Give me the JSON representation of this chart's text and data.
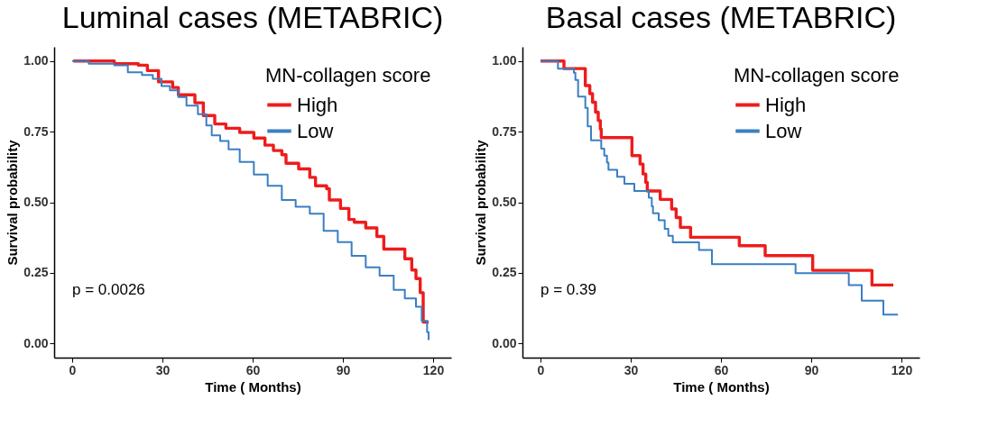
{
  "chart_data": [
    {
      "type": "step",
      "title": "Luminal cases (METABRIC)",
      "xlabel": "Time ( Months)",
      "ylabel": "Survival probability",
      "legend_title": "MN-collagen score",
      "legend": "top right",
      "annotations": [
        "p = 0.0026"
      ],
      "xlim": [
        -6,
        126
      ],
      "xticks": [
        0,
        30,
        60,
        90,
        120
      ],
      "ylim": [
        -0.05,
        1.05
      ],
      "yticks": [
        {
          "value": 0,
          "label": "0.00"
        },
        {
          "value": 0.25,
          "label": "0.25"
        },
        {
          "value": 0.5,
          "label": "0.50"
        },
        {
          "value": 0.75,
          "label": "0.75"
        },
        {
          "value": 1,
          "label": "1.00"
        }
      ],
      "series": [
        {
          "name": "High",
          "color": "#ee1c1c",
          "x": [
            0.4,
            14,
            22,
            25,
            28.7,
            33.4,
            35.3,
            40.8,
            43.6,
            47.4,
            51.1,
            55.7,
            60.4,
            64.1,
            66.9,
            69.7,
            71.1,
            75.3,
            79,
            80.9,
            84.6,
            85.5,
            89.2,
            92,
            93.8,
            97.6,
            101.3,
            103.6,
            109.2,
            110.6,
            112.9,
            114.3,
            115.7,
            116.7,
            118.5
          ],
          "values": [
            1.0,
            0.99,
            0.985,
            0.966,
            0.926,
            0.906,
            0.88,
            0.852,
            0.807,
            0.777,
            0.762,
            0.747,
            0.727,
            0.702,
            0.683,
            0.668,
            0.638,
            0.618,
            0.588,
            0.558,
            0.548,
            0.508,
            0.478,
            0.439,
            0.429,
            0.409,
            0.379,
            0.334,
            0.334,
            0.3,
            0.26,
            0.23,
            0.18,
            0.076,
            0.076
          ]
        },
        {
          "name": "Low",
          "color": "#3a7fc2",
          "x": [
            0,
            5.5,
            14,
            18.5,
            23.2,
            26.8,
            29.7,
            32.5,
            35.3,
            38,
            41.8,
            44.6,
            46.4,
            49.2,
            52,
            55.7,
            60.4,
            65,
            69.7,
            74.3,
            79,
            83.6,
            88.3,
            92.9,
            97.6,
            102.2,
            106.9,
            110.6,
            114.3,
            116.2,
            118,
            118.5
          ],
          "values": [
            1.0,
            0.99,
            0.985,
            0.96,
            0.95,
            0.937,
            0.911,
            0.896,
            0.872,
            0.842,
            0.812,
            0.772,
            0.737,
            0.717,
            0.687,
            0.643,
            0.598,
            0.558,
            0.508,
            0.484,
            0.459,
            0.399,
            0.359,
            0.31,
            0.27,
            0.24,
            0.19,
            0.16,
            0.13,
            0.08,
            0.04,
            0.012
          ]
        }
      ]
    },
    {
      "type": "step",
      "title": "Basal cases (METABRIC)",
      "xlabel": "Time ( Months)",
      "ylabel": "Survival probability",
      "legend_title": "MN-collagen score",
      "legend": "top right",
      "annotations": [
        "p = 0.39"
      ],
      "xlim": [
        -6,
        126
      ],
      "xticks": [
        0,
        30,
        60,
        90,
        120
      ],
      "ylim": [
        -0.05,
        1.05
      ],
      "yticks": [
        {
          "value": 0,
          "label": "0.00"
        },
        {
          "value": 0.25,
          "label": "0.25"
        },
        {
          "value": 0.5,
          "label": "0.50"
        },
        {
          "value": 0.75,
          "label": "0.75"
        },
        {
          "value": 1,
          "label": "1.00"
        }
      ],
      "series": [
        {
          "name": "High",
          "color": "#ee1c1c",
          "x": [
            0,
            7.8,
            14.9,
            16.4,
            17.3,
            18.3,
            19.2,
            19.9,
            20.2,
            30.4,
            33.1,
            34.1,
            35,
            35.5,
            39.8,
            43.6,
            45.1,
            46.5,
            49.9,
            66.1,
            74.7,
            90.5,
            110.2,
            117.3
          ],
          "values": [
            1.0,
            0.973,
            0.913,
            0.884,
            0.854,
            0.819,
            0.789,
            0.759,
            0.729,
            0.665,
            0.635,
            0.6,
            0.57,
            0.54,
            0.51,
            0.476,
            0.446,
            0.411,
            0.376,
            0.346,
            0.311,
            0.259,
            0.207,
            0.207
          ]
        },
        {
          "name": "Low",
          "color": "#3a7fc2",
          "x": [
            0,
            5.8,
            11.1,
            11.6,
            12.5,
            14.9,
            15.7,
            16.8,
            20.2,
            21.2,
            22.1,
            22.6,
            25.5,
            27.9,
            31.2,
            36,
            37,
            37.4,
            39.3,
            41.3,
            42.5,
            44,
            52.7,
            57,
            84.8,
            102.5,
            106.8,
            114,
            118.8
          ],
          "values": [
            1.0,
            0.973,
            0.958,
            0.933,
            0.874,
            0.834,
            0.769,
            0.719,
            0.69,
            0.665,
            0.64,
            0.615,
            0.59,
            0.565,
            0.54,
            0.516,
            0.486,
            0.461,
            0.436,
            0.406,
            0.381,
            0.358,
            0.331,
            0.281,
            0.249,
            0.207,
            0.152,
            0.102,
            0.102
          ]
        }
      ]
    }
  ]
}
